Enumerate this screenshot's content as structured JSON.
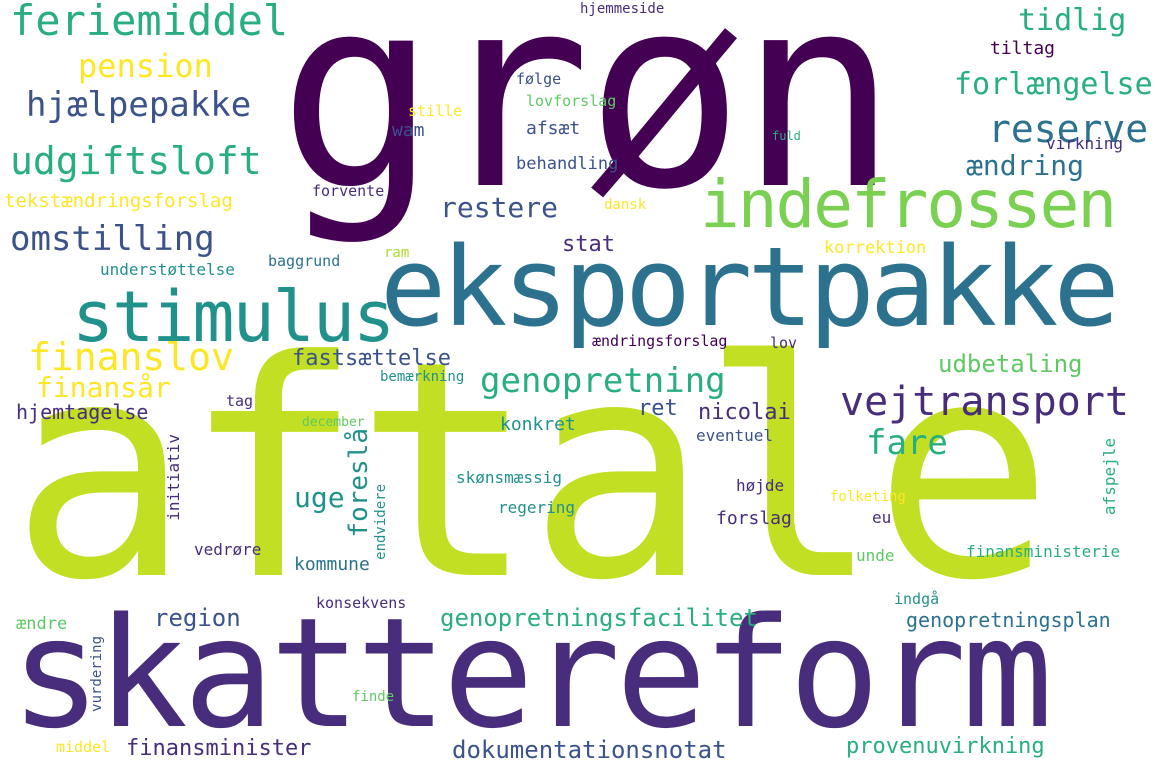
{
  "colors": {
    "background": "#ffffff",
    "dark_purple": "#440154",
    "purple": "#472d7b",
    "indigo": "#3b528b",
    "blue": "#2c728e",
    "teal": "#21918c",
    "green_teal": "#28ae80",
    "green": "#5ec962",
    "light_green": "#addc30",
    "yellow_green": "#c2df23",
    "yellow": "#fde725"
  },
  "words": {
    "aftale": "aftale",
    "skattereform": "skattereform",
    "gron": "grøn",
    "eksportpakke": "eksportpakke",
    "indefrossen": "indefrossen",
    "stimulus": "stimulus",
    "feriemiddel": "feriemiddel",
    "hjaelpepakke": "hjælpepakke",
    "udgiftsloft": "udgiftsloft",
    "omstilling": "omstilling",
    "pension": "pension",
    "tekstaendringsforslag": "tekstændringsforslag",
    "understottelse": "understøttelse",
    "finanslov": "finanslov",
    "finansaar": "finansår",
    "hjemtagelse": "hjemtagelse",
    "fastsaettelse": "fastsættelse",
    "genopretning": "genopretning",
    "vejtransport": "vejtransport",
    "reserve": "reserve",
    "tidlig": "tidlig",
    "forlaengelse": "forlængelse",
    "aendring": "ændring",
    "udbetaling": "udbetaling",
    "restere": "restere",
    "stat": "stat",
    "baggrund": "baggrund",
    "ram": "ram",
    "korrektion": "korrektion",
    "hjemmeside": "hjemmeside",
    "tiltag": "tiltag",
    "folge": "følge",
    "lovforslag": "lovforslag",
    "stille": "stille",
    "wam": "wam",
    "afsaet": "afsæt",
    "fuld": "fuld",
    "virkning": "virkning",
    "behandling": "behandling",
    "forvente": "forvente",
    "dansk": "dansk",
    "aendringsforslag": "ændringsforslag",
    "lov": "lov",
    "bemaerkning": "bemærkning",
    "tag": "tag",
    "december": "december",
    "ret": "ret",
    "nicolai": "nicolai",
    "konkret": "konkret",
    "eventuel": "eventuel",
    "fare": "fare",
    "uge": "uge",
    "foreslaa": "foreslå",
    "skonsmaessig": "skønsmæssig",
    "regering": "regering",
    "hojde": "højde",
    "folketing": "folketing",
    "forslag": "forslag",
    "eu": "eu",
    "initiativ": "initiativ",
    "endvidere": "endvidere",
    "vedrore": "vedrøre",
    "kommune": "kommune",
    "unde": "unde",
    "finansministerie": "finansministerie",
    "afspejle": "afspejle",
    "region": "region",
    "genopretningsfacilitet": "genopretningsfacilitet",
    "genopretningsplan": "genopretningsplan",
    "konsekvens": "konsekvens",
    "indgaa": "indgå",
    "aendre": "ændre",
    "vurdering": "vurdering",
    "finde": "finde",
    "middel": "middel",
    "finansminister": "finansminister",
    "dokumentationsnotat": "dokumentationsnotat",
    "provenuvirkning": "provenuvirkning"
  }
}
